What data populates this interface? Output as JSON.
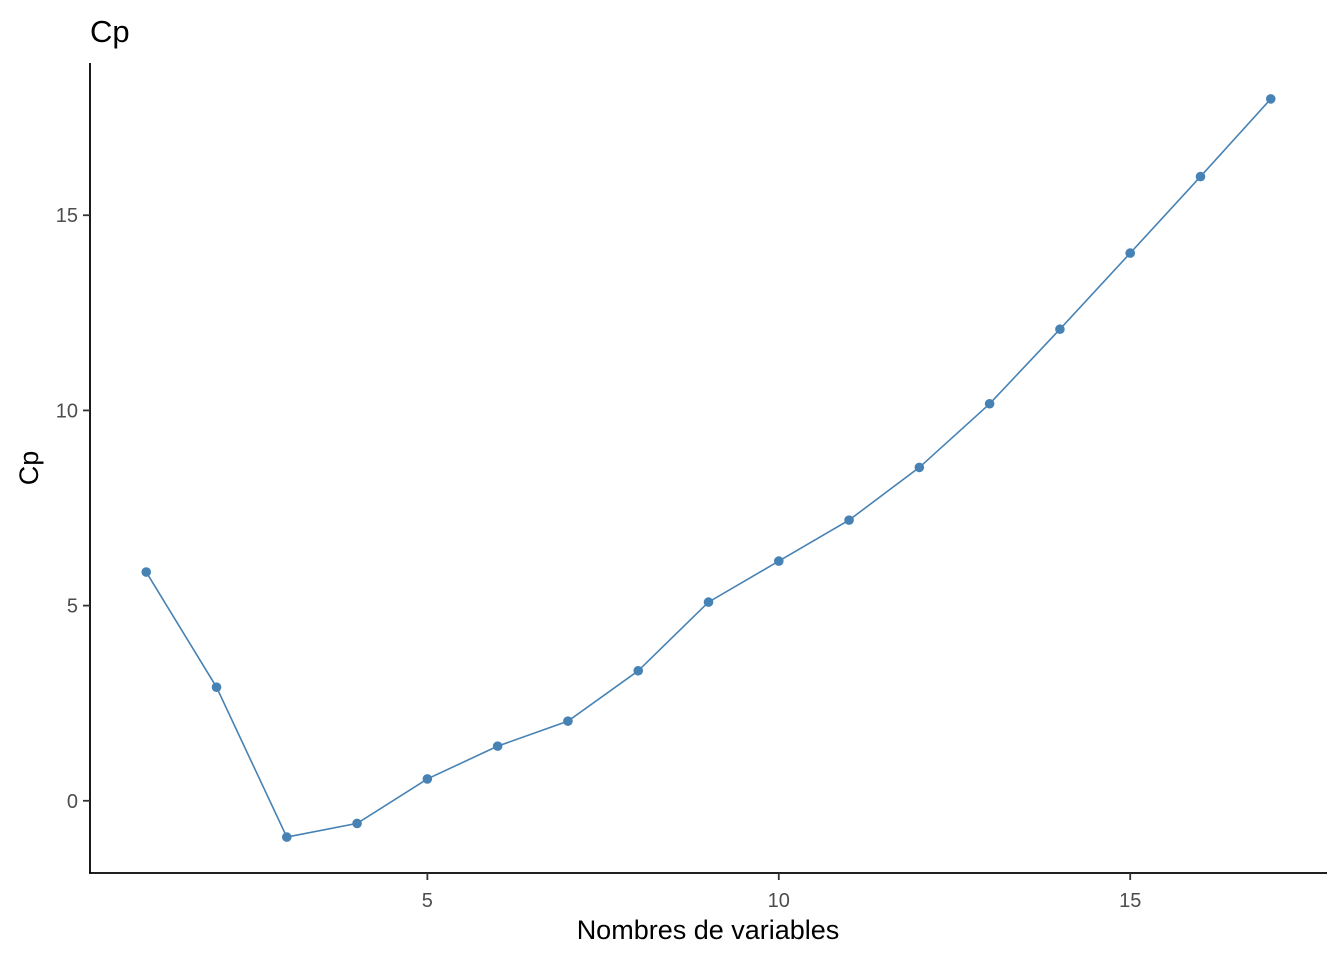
{
  "chart_data": {
    "type": "line",
    "title": "Cp",
    "xlabel": "Nombres de variables",
    "ylabel": "Cp",
    "x": [
      1,
      2,
      3,
      4,
      5,
      6,
      7,
      8,
      9,
      10,
      11,
      12,
      13,
      14,
      15,
      16,
      17
    ],
    "series": [
      {
        "values": [
          5.86,
          2.91,
          -0.93,
          -0.58,
          0.56,
          1.4,
          2.04,
          3.33,
          5.09,
          6.14,
          7.19,
          8.54,
          10.17,
          12.08,
          14.03,
          15.99,
          17.98
        ],
        "color": "#4682B4"
      }
    ],
    "xlim": [
      0.2,
      17.8
    ],
    "ylim": [
      -1.85,
      18.9
    ],
    "xticks": [
      5,
      10,
      15
    ],
    "yticks": [
      0,
      5,
      10,
      15
    ],
    "grid": false,
    "markers": true
  }
}
